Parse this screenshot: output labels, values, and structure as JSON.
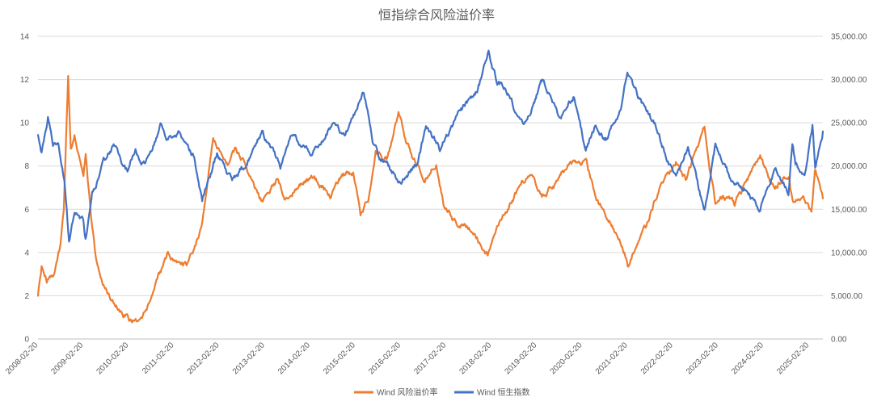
{
  "chart_data": {
    "type": "line",
    "title": "恒指综合风险溢价率",
    "grid": true,
    "legend_position": "bottom",
    "y_left": {
      "ylim": [
        0,
        14
      ],
      "ticks": [
        "0",
        "2",
        "4",
        "6",
        "8",
        "10",
        "12",
        "14"
      ]
    },
    "y_right": {
      "ylim": [
        0,
        35000
      ],
      "ticks": [
        "0.00",
        "5,000.00",
        "10,000.00",
        "15,000.00",
        "20,000.00",
        "25,000.00",
        "30,000.00",
        "35,000.00"
      ]
    },
    "x_ticks": [
      "2008-02-20",
      "2009-02-20",
      "2010-02-20",
      "2011-02-20",
      "2012-02-20",
      "2013-02-20",
      "2014-02-20",
      "2015-02-20",
      "2016-02-20",
      "2017-02-20",
      "2018-02-20",
      "2019-02-20",
      "2020-02-20",
      "2021-02-20",
      "2022-02-20",
      "2023-02-20",
      "2024-02-20",
      "2025-02-20"
    ],
    "x_range": [
      "2008-02-20",
      "2025-06-10"
    ],
    "series": [
      {
        "name": "Wind 风险溢价率",
        "axis": "left",
        "color": "#ed7d31",
        "points": [
          [
            "2008-02-20",
            1.9
          ],
          [
            "2008-03-20",
            3.3
          ],
          [
            "2008-05-01",
            2.7
          ],
          [
            "2008-07-01",
            3.2
          ],
          [
            "2008-08-20",
            4.3
          ],
          [
            "2008-09-15",
            6.0
          ],
          [
            "2008-10-20",
            12.2
          ],
          [
            "2008-11-10",
            8.8
          ],
          [
            "2008-12-10",
            9.5
          ],
          [
            "2009-01-10",
            8.6
          ],
          [
            "2009-02-20",
            7.7
          ],
          [
            "2009-03-10",
            8.6
          ],
          [
            "2009-04-20",
            5.8
          ],
          [
            "2009-06-01",
            3.8
          ],
          [
            "2009-08-01",
            2.6
          ],
          [
            "2009-10-01",
            1.8
          ],
          [
            "2010-01-01",
            1.2
          ],
          [
            "2010-03-01",
            0.9
          ],
          [
            "2010-06-01",
            1.0
          ],
          [
            "2010-08-01",
            1.6
          ],
          [
            "2010-10-01",
            2.6
          ],
          [
            "2011-01-01",
            3.8
          ],
          [
            "2011-03-01",
            3.4
          ],
          [
            "2011-06-01",
            3.5
          ],
          [
            "2011-08-01",
            4.2
          ],
          [
            "2011-10-01",
            5.3
          ],
          [
            "2011-11-20",
            7.6
          ],
          [
            "2012-01-01",
            9.3
          ],
          [
            "2012-03-01",
            8.6
          ],
          [
            "2012-05-01",
            8.0
          ],
          [
            "2012-07-01",
            8.8
          ],
          [
            "2012-09-01",
            8.2
          ],
          [
            "2012-11-01",
            7.3
          ],
          [
            "2013-02-01",
            6.3
          ],
          [
            "2013-03-01",
            6.7
          ],
          [
            "2013-06-01",
            7.4
          ],
          [
            "2013-08-01",
            6.6
          ],
          [
            "2013-11-01",
            6.9
          ],
          [
            "2014-03-01",
            7.5
          ],
          [
            "2014-05-01",
            7.2
          ],
          [
            "2014-08-01",
            6.6
          ],
          [
            "2014-11-01",
            7.6
          ],
          [
            "2015-02-01",
            7.7
          ],
          [
            "2015-04-01",
            5.8
          ],
          [
            "2015-06-01",
            6.5
          ],
          [
            "2015-08-01",
            8.6
          ],
          [
            "2015-11-01",
            8.3
          ],
          [
            "2016-02-01",
            10.5
          ],
          [
            "2016-04-01",
            9.2
          ],
          [
            "2016-06-01",
            8.3
          ],
          [
            "2016-09-01",
            7.4
          ],
          [
            "2016-12-01",
            8.2
          ],
          [
            "2017-02-01",
            6.2
          ],
          [
            "2017-05-01",
            5.5
          ],
          [
            "2017-09-01",
            5.1
          ],
          [
            "2018-01-20",
            3.9
          ],
          [
            "2018-03-01",
            4.8
          ],
          [
            "2018-06-01",
            5.7
          ],
          [
            "2018-10-01",
            7.0
          ],
          [
            "2019-01-01",
            7.8
          ],
          [
            "2019-04-01",
            6.6
          ],
          [
            "2019-08-01",
            7.3
          ],
          [
            "2019-11-01",
            8.0
          ],
          [
            "2020-03-20",
            8.3
          ],
          [
            "2020-06-01",
            6.6
          ],
          [
            "2020-09-01",
            5.7
          ],
          [
            "2021-01-01",
            4.6
          ],
          [
            "2021-02-20",
            3.5
          ],
          [
            "2021-05-01",
            4.2
          ],
          [
            "2021-08-01",
            5.3
          ],
          [
            "2021-10-01",
            6.5
          ],
          [
            "2022-03-15",
            8.3
          ],
          [
            "2022-06-01",
            7.4
          ],
          [
            "2022-10-31",
            9.8
          ],
          [
            "2023-01-26",
            6.2
          ],
          [
            "2023-04-01",
            6.6
          ],
          [
            "2023-07-01",
            6.2
          ],
          [
            "2023-10-01",
            7.2
          ],
          [
            "2024-01-22",
            8.4
          ],
          [
            "2024-05-20",
            6.8
          ],
          [
            "2024-08-01",
            7.4
          ],
          [
            "2024-09-10",
            7.5
          ],
          [
            "2024-10-08",
            6.3
          ],
          [
            "2025-01-10",
            6.4
          ],
          [
            "2025-03-10",
            6.0
          ],
          [
            "2025-04-07",
            7.8
          ],
          [
            "2025-06-10",
            6.5
          ]
        ]
      },
      {
        "name": "Wind 恒生指数",
        "axis": "right",
        "color": "#4472c4",
        "points": [
          [
            "2008-02-20",
            23500
          ],
          [
            "2008-03-20",
            21400
          ],
          [
            "2008-05-10",
            25800
          ],
          [
            "2008-06-20",
            23000
          ],
          [
            "2008-08-01",
            22500
          ],
          [
            "2008-09-20",
            18500
          ],
          [
            "2008-10-27",
            11000
          ],
          [
            "2008-12-10",
            15000
          ],
          [
            "2009-02-20",
            13500
          ],
          [
            "2009-03-09",
            11500
          ],
          [
            "2009-05-01",
            17000
          ],
          [
            "2009-07-01",
            19000
          ],
          [
            "2009-08-01",
            20500
          ],
          [
            "2009-11-01",
            22500
          ],
          [
            "2010-02-10",
            19500
          ],
          [
            "2010-04-15",
            22000
          ],
          [
            "2010-06-01",
            19500
          ],
          [
            "2010-08-01",
            21000
          ],
          [
            "2010-11-08",
            24800
          ],
          [
            "2011-01-01",
            23000
          ],
          [
            "2011-04-01",
            24000
          ],
          [
            "2011-08-01",
            21000
          ],
          [
            "2011-10-04",
            16200
          ],
          [
            "2011-12-01",
            18500
          ],
          [
            "2012-02-01",
            21500
          ],
          [
            "2012-06-01",
            18200
          ],
          [
            "2012-09-01",
            20000
          ],
          [
            "2013-01-28",
            23800
          ],
          [
            "2013-06-25",
            19800
          ],
          [
            "2013-10-01",
            23300
          ],
          [
            "2014-03-01",
            21300
          ],
          [
            "2014-09-01",
            25000
          ],
          [
            "2014-12-01",
            23500
          ],
          [
            "2015-04-28",
            28400
          ],
          [
            "2015-07-08",
            23000
          ],
          [
            "2015-09-01",
            21000
          ],
          [
            "2016-02-12",
            18300
          ],
          [
            "2016-06-27",
            20200
          ],
          [
            "2016-09-09",
            24300
          ],
          [
            "2016-12-30",
            21900
          ],
          [
            "2017-06-01",
            25900
          ],
          [
            "2017-11-01",
            28800
          ],
          [
            "2018-01-26",
            33200
          ],
          [
            "2018-04-01",
            30000
          ],
          [
            "2018-07-01",
            28500
          ],
          [
            "2018-10-30",
            24500
          ],
          [
            "2019-04-15",
            30200
          ],
          [
            "2019-08-15",
            25500
          ],
          [
            "2019-12-15",
            28200
          ],
          [
            "2020-03-19",
            21700
          ],
          [
            "2020-06-01",
            24500
          ],
          [
            "2020-09-01",
            23300
          ],
          [
            "2021-01-01",
            27000
          ],
          [
            "2021-02-17",
            31000
          ],
          [
            "2021-05-01",
            28500
          ],
          [
            "2021-10-01",
            24500
          ],
          [
            "2022-03-15",
            18400
          ],
          [
            "2022-06-20",
            22200
          ],
          [
            "2022-10-31",
            14700
          ],
          [
            "2023-01-27",
            22600
          ],
          [
            "2023-06-01",
            18300
          ],
          [
            "2023-10-01",
            17500
          ],
          [
            "2024-01-22",
            14900
          ],
          [
            "2024-05-20",
            19600
          ],
          [
            "2024-09-06",
            17100
          ],
          [
            "2024-10-07",
            23100
          ],
          [
            "2024-11-01",
            20500
          ],
          [
            "2025-01-13",
            18900
          ],
          [
            "2025-03-18",
            24700
          ],
          [
            "2025-04-09",
            19800
          ],
          [
            "2025-06-10",
            24000
          ]
        ]
      }
    ]
  }
}
